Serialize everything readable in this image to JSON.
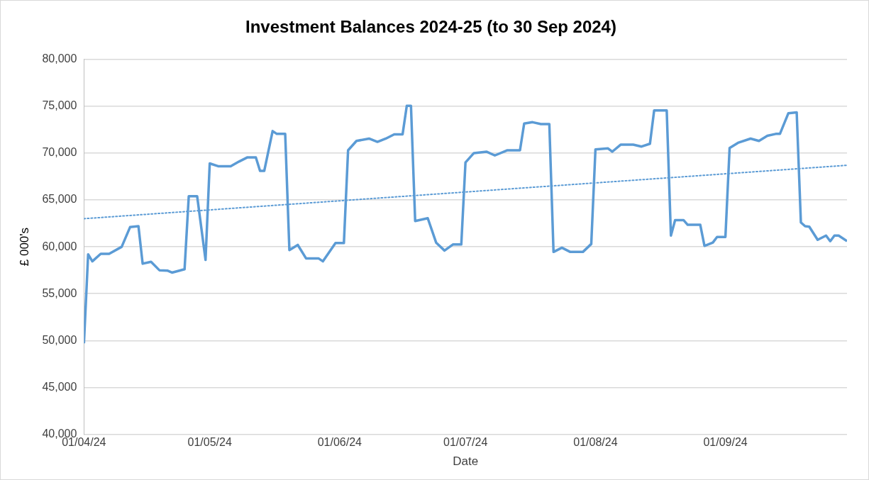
{
  "chart_data": {
    "type": "line",
    "title": "Investment Balances 2024-25 (to 30 Sep 2024)",
    "xlabel": "Date",
    "ylabel": "£ 000's",
    "xlim": [
      "2024-04-01",
      "2024-09-30"
    ],
    "xticks": [
      {
        "value": "2024-04-01",
        "label": "01/04/24"
      },
      {
        "value": "2024-05-01",
        "label": "01/05/24"
      },
      {
        "value": "2024-06-01",
        "label": "01/06/24"
      },
      {
        "value": "2024-07-01",
        "label": "01/07/24"
      },
      {
        "value": "2024-08-01",
        "label": "01/08/24"
      },
      {
        "value": "2024-09-01",
        "label": "01/09/24"
      }
    ],
    "ylim": [
      40000,
      80000
    ],
    "yticks": [
      {
        "value": 40000,
        "label": "40,000"
      },
      {
        "value": 45000,
        "label": "45,000"
      },
      {
        "value": 50000,
        "label": "50,000"
      },
      {
        "value": 55000,
        "label": "55,000"
      },
      {
        "value": 60000,
        "label": "60,000"
      },
      {
        "value": 65000,
        "label": "65,000"
      },
      {
        "value": 70000,
        "label": "70,000"
      },
      {
        "value": 75000,
        "label": "75,000"
      },
      {
        "value": 80000,
        "label": "80,000"
      }
    ],
    "grid": "y",
    "marker": "none",
    "series": [
      {
        "type": "line",
        "color": "#5b9bd5",
        "line_style": "solid",
        "x": [
          "2024-04-01",
          "2024-04-02",
          "2024-04-03",
          "2024-04-05",
          "2024-04-07",
          "2024-04-10",
          "2024-04-12",
          "2024-04-14",
          "2024-04-15",
          "2024-04-17",
          "2024-04-19",
          "2024-04-21",
          "2024-04-22",
          "2024-04-25",
          "2024-04-26",
          "2024-04-28",
          "2024-04-30",
          "2024-05-01",
          "2024-05-03",
          "2024-05-06",
          "2024-05-08",
          "2024-05-10",
          "2024-05-12",
          "2024-05-13",
          "2024-05-14",
          "2024-05-16",
          "2024-05-17",
          "2024-05-19",
          "2024-05-20",
          "2024-05-22",
          "2024-05-24",
          "2024-05-27",
          "2024-05-28",
          "2024-05-31",
          "2024-06-02",
          "2024-06-03",
          "2024-06-05",
          "2024-06-08",
          "2024-06-10",
          "2024-06-12",
          "2024-06-14",
          "2024-06-16",
          "2024-06-17",
          "2024-06-18",
          "2024-06-19",
          "2024-06-22",
          "2024-06-24",
          "2024-06-26",
          "2024-06-28",
          "2024-06-30",
          "2024-07-01",
          "2024-07-03",
          "2024-07-06",
          "2024-07-08",
          "2024-07-11",
          "2024-07-14",
          "2024-07-15",
          "2024-07-17",
          "2024-07-19",
          "2024-07-21",
          "2024-07-22",
          "2024-07-24",
          "2024-07-26",
          "2024-07-29",
          "2024-07-31",
          "2024-08-01",
          "2024-08-04",
          "2024-08-05",
          "2024-08-07",
          "2024-08-10",
          "2024-08-12",
          "2024-08-14",
          "2024-08-15",
          "2024-08-18",
          "2024-08-19",
          "2024-08-20",
          "2024-08-22",
          "2024-08-23",
          "2024-08-26",
          "2024-08-27",
          "2024-08-29",
          "2024-08-30",
          "2024-09-01",
          "2024-09-02",
          "2024-09-04",
          "2024-09-07",
          "2024-09-09",
          "2024-09-11",
          "2024-09-13",
          "2024-09-14",
          "2024-09-16",
          "2024-09-18",
          "2024-09-19",
          "2024-09-20",
          "2024-09-21",
          "2024-09-23",
          "2024-09-25",
          "2024-09-26",
          "2024-09-27",
          "2024-09-28",
          "2024-09-30"
        ],
        "values": [
          49700,
          59200,
          58450,
          59250,
          59250,
          60000,
          62100,
          62200,
          58200,
          58400,
          57500,
          57450,
          57250,
          57600,
          65400,
          65400,
          58600,
          68900,
          68600,
          68600,
          69100,
          69550,
          69550,
          68100,
          68100,
          72350,
          72050,
          72050,
          59650,
          60200,
          58750,
          58750,
          58450,
          60400,
          60400,
          70300,
          71300,
          71550,
          71200,
          71550,
          72000,
          72000,
          75050,
          75050,
          62750,
          63050,
          60450,
          59600,
          60250,
          60250,
          69000,
          70000,
          70150,
          69750,
          70300,
          70300,
          73150,
          73300,
          73100,
          73100,
          59450,
          59900,
          59450,
          59450,
          60300,
          70400,
          70500,
          70150,
          70900,
          70900,
          70700,
          71000,
          74550,
          74550,
          61200,
          62850,
          62850,
          62350,
          62350,
          60100,
          60450,
          61050,
          61050,
          70550,
          71100,
          71550,
          71300,
          71850,
          72050,
          72050,
          74250,
          74350,
          62600,
          62200,
          62150,
          60750,
          61200,
          60600,
          61200,
          61200,
          60600
        ]
      },
      {
        "type": "line",
        "color": "#5b9bd5",
        "line_style": "dotted",
        "x": [
          "2024-04-01",
          "2024-09-30"
        ],
        "values": [
          63000,
          68700
        ]
      }
    ]
  }
}
